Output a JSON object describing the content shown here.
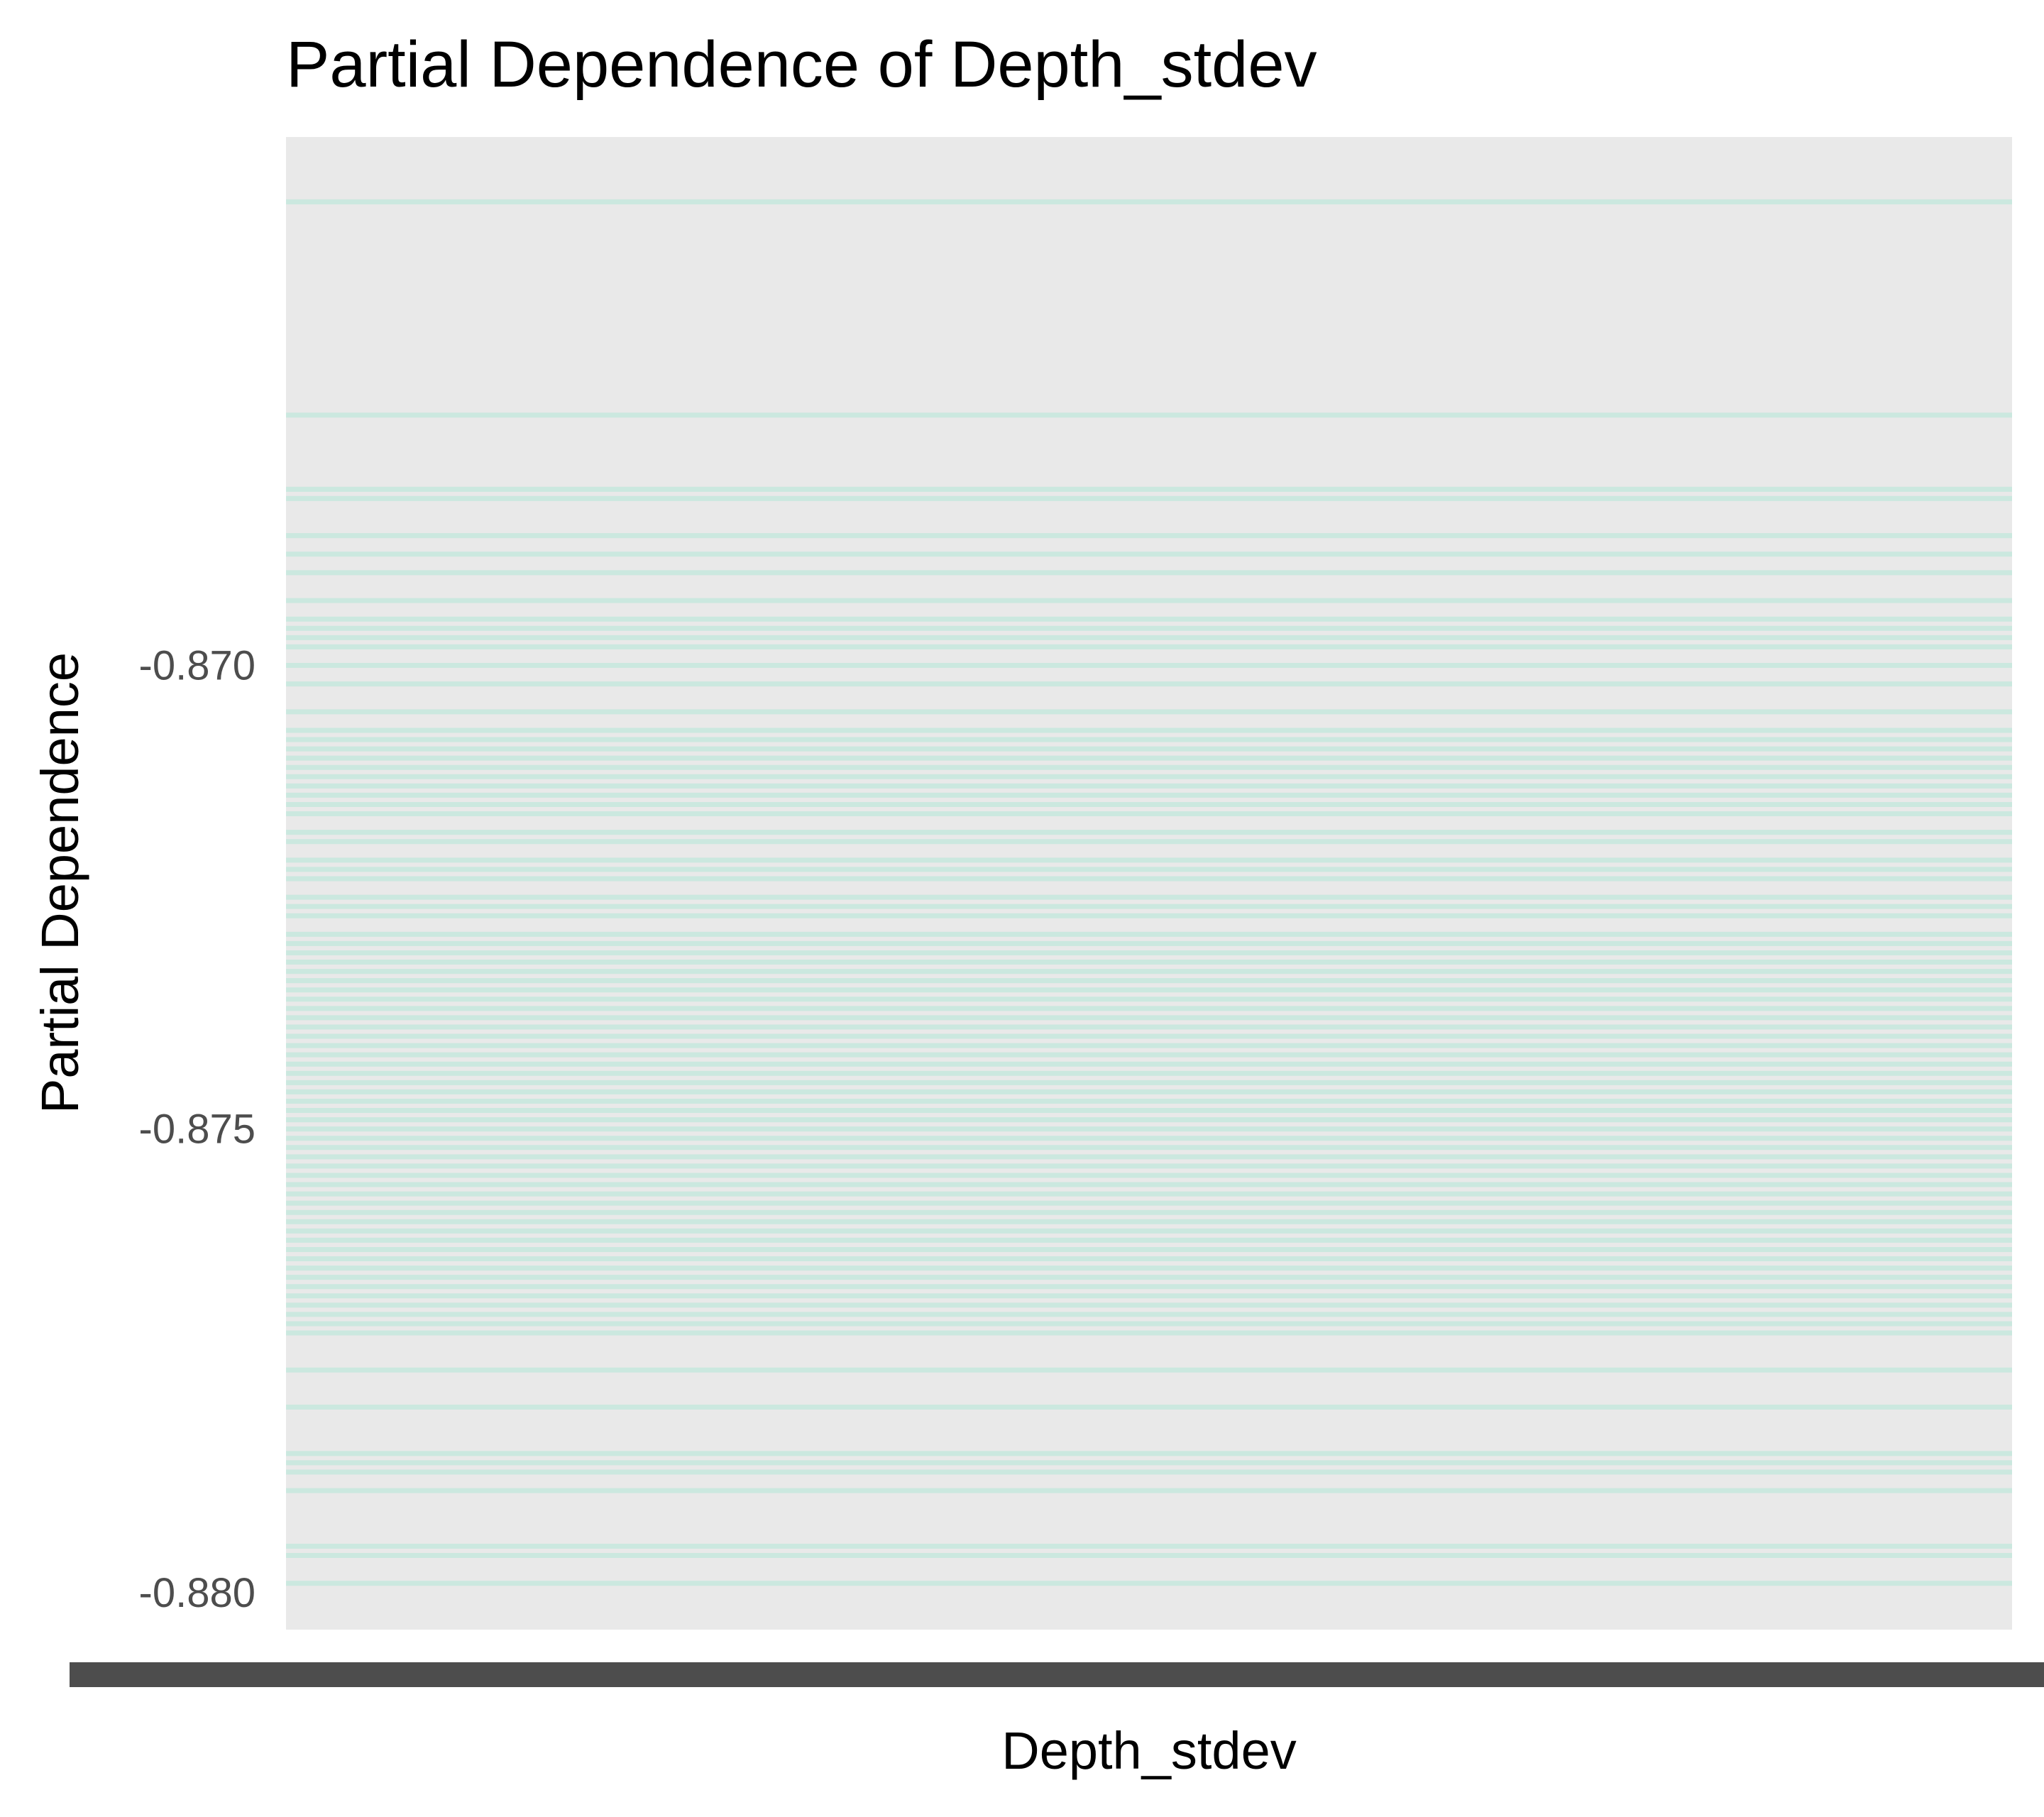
{
  "chart_data": {
    "type": "line",
    "title": "Partial Dependence of Depth_stdev",
    "xlabel": "Depth_stdev",
    "ylabel": "Partial Dependence",
    "ylim": [
      -0.8804,
      -0.8643
    ],
    "yticks": [
      -0.87,
      -0.875,
      -0.88
    ],
    "ytick_labels": [
      "-0.870",
      "-0.875",
      "-0.880"
    ],
    "xtick_labels_note": "overlapping illegible x tick labels",
    "grid": false,
    "legend": "none",
    "series_color": "#7fe5c4",
    "panel_background": "#e9e9e9",
    "ice_curve_levels": [
      -0.865,
      -0.8673,
      -0.8681,
      -0.8682,
      -0.8686,
      -0.8688,
      -0.869,
      -0.8693,
      -0.8695,
      -0.8696,
      -0.8697,
      -0.8698,
      -0.87,
      -0.8702,
      -0.8705,
      -0.8707,
      -0.8708,
      -0.8709,
      -0.871,
      -0.8711,
      -0.8712,
      -0.8713,
      -0.8714,
      -0.8715,
      -0.8716,
      -0.8718,
      -0.8719,
      -0.8721,
      -0.8722,
      -0.8723,
      -0.8725,
      -0.8726,
      -0.8727,
      -0.8729,
      -0.873,
      -0.8731,
      -0.8732,
      -0.8733,
      -0.8734,
      -0.8735,
      -0.8736,
      -0.8737,
      -0.8738,
      -0.8739,
      -0.874,
      -0.8741,
      -0.8742,
      -0.8743,
      -0.8744,
      -0.8745,
      -0.8746,
      -0.8747,
      -0.8748,
      -0.8749,
      -0.875,
      -0.8751,
      -0.8752,
      -0.8753,
      -0.8754,
      -0.8755,
      -0.8756,
      -0.8757,
      -0.8758,
      -0.8759,
      -0.876,
      -0.8761,
      -0.8762,
      -0.8763,
      -0.8764,
      -0.8765,
      -0.8766,
      -0.8767,
      -0.8768,
      -0.8769,
      -0.877,
      -0.8771,
      -0.8772,
      -0.8776,
      -0.878,
      -0.8785,
      -0.8786,
      -0.8787,
      -0.8789,
      -0.8795,
      -0.8796,
      -0.8799
    ]
  }
}
